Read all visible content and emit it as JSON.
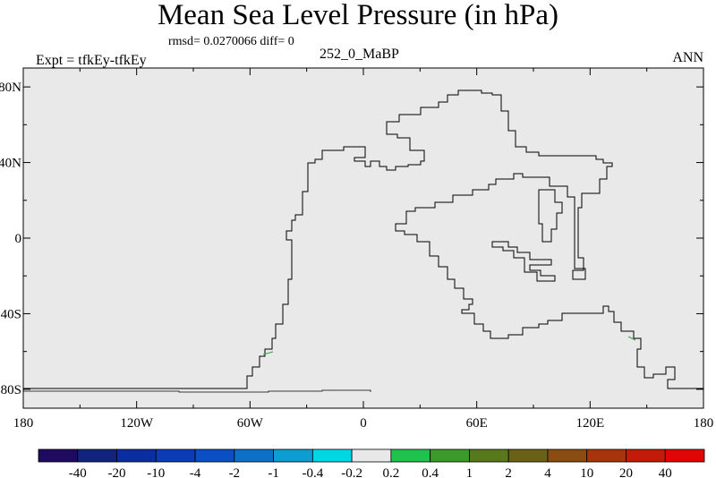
{
  "header": {
    "title": "Mean Sea Level Pressure (in hPa)",
    "stats": "rmsd= 0.0270066 diff= 0",
    "left_label": "Expt = tfkEy-tfkEy",
    "center_label": "252_0_MaBP",
    "right_label": "ANN"
  },
  "map": {
    "lon_ticks": [
      "180",
      "120W",
      "60W",
      "0",
      "60E",
      "120E",
      "180"
    ],
    "lat_ticks": [
      "80N",
      "40N",
      "0",
      "40S",
      "80S"
    ],
    "lon_range": [
      -180,
      180
    ],
    "lat_range": [
      -90,
      90
    ],
    "background_color": "#e9e9e9",
    "coastline_color": "#000000"
  },
  "colorbar": {
    "labels": [
      "-40",
      "-20",
      "-10",
      "-4",
      "-2",
      "-1",
      "-0.4",
      "-0.2",
      "0.2",
      "0.4",
      "1",
      "2",
      "4",
      "10",
      "20",
      "40"
    ],
    "colors": [
      "#1e0a5e",
      "#12237e",
      "#0a2ea0",
      "#0b3bb5",
      "#0a4fc4",
      "#0b70c6",
      "#0e9dd3",
      "#00d7e4",
      "#e8e8e8",
      "#1ec24d",
      "#3c9a2a",
      "#58781c",
      "#6a6117",
      "#8a4c11",
      "#a8340c",
      "#c41a08",
      "#e10606"
    ]
  }
}
